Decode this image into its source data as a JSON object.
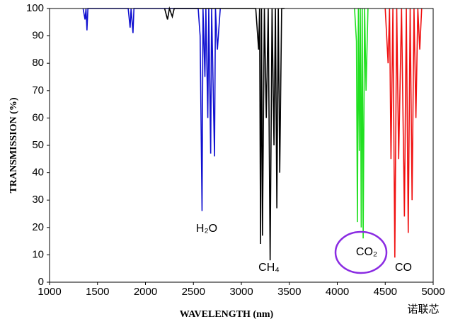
{
  "chart_data": {
    "type": "line",
    "x_label": "WAVELENGTH (nm)",
    "y_label": "TRANSMISSION (%)",
    "xlim": [
      1000,
      5000
    ],
    "xticks": [
      1000,
      1500,
      2000,
      2500,
      3000,
      3500,
      4000,
      4500,
      5000
    ],
    "ylim": [
      0,
      100
    ],
    "yticks": [
      0,
      10,
      20,
      30,
      40,
      50,
      60,
      70,
      80,
      90,
      100
    ],
    "grid": false,
    "series": [
      {
        "name": "H₂O",
        "color": "#1010d0",
        "x": [
          1350,
          1370,
          1380,
          1390,
          1400,
          1410,
          1820,
          1840,
          1850,
          1870,
          1880,
          1900,
          2550,
          2570,
          2590,
          2600,
          2620,
          2630,
          2650,
          2660,
          2680,
          2690,
          2720,
          2730,
          2750,
          2780
        ],
        "values": [
          100,
          96,
          100,
          92,
          100,
          100,
          100,
          93,
          100,
          91,
          100,
          100,
          100,
          90,
          26,
          100,
          75,
          100,
          60,
          100,
          47,
          100,
          46,
          100,
          85,
          100
        ]
      },
      {
        "name": "CH₄",
        "color": "#000000",
        "x": [
          2200,
          2230,
          2250,
          2280,
          2300,
          3150,
          3180,
          3190,
          3200,
          3210,
          3220,
          3240,
          3260,
          3280,
          3300,
          3320,
          3340,
          3355,
          3370,
          3385,
          3400,
          3420,
          3450
        ],
        "values": [
          100,
          96,
          100,
          97,
          100,
          100,
          85,
          100,
          14,
          100,
          17,
          100,
          60,
          100,
          8,
          100,
          50,
          100,
          27,
          100,
          40,
          100,
          100
        ]
      },
      {
        "name": "CO₂",
        "color": "#20e020",
        "x": [
          4180,
          4200,
          4210,
          4220,
          4230,
          4240,
          4250,
          4260,
          4270,
          4285,
          4300,
          4320
        ],
        "values": [
          100,
          88,
          22,
          100,
          48,
          100,
          20,
          100,
          16,
          100,
          70,
          100
        ]
      },
      {
        "name": "CO",
        "color": "#f01010",
        "x": [
          4500,
          4530,
          4545,
          4560,
          4580,
          4600,
          4620,
          4640,
          4670,
          4700,
          4720,
          4740,
          4760,
          4780,
          4800,
          4820,
          4840,
          4860,
          4880
        ],
        "values": [
          100,
          80,
          100,
          45,
          100,
          9,
          100,
          45,
          100,
          24,
          100,
          18,
          100,
          30,
          100,
          60,
          100,
          85,
          100
        ]
      }
    ],
    "annotations": [
      "H₂O",
      "CH₄",
      "CO₂",
      "CO"
    ],
    "watermark": "诺联芯"
  }
}
